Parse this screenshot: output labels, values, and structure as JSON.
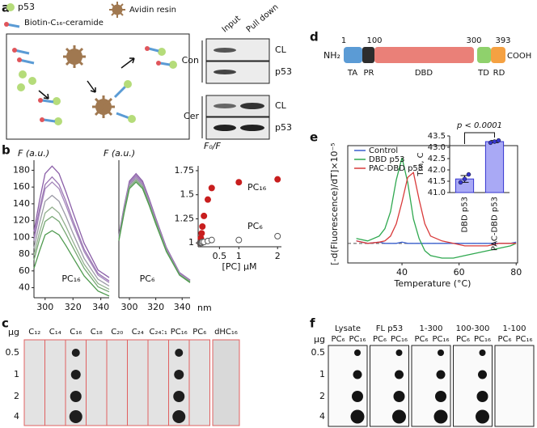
{
  "panel_labels": [
    "a",
    "b",
    "c",
    "d",
    "e",
    "f"
  ],
  "panel_a": {
    "legend": [
      "p53",
      "Biotin-C₁₆-ceramide",
      "Avidin resin"
    ],
    "blot": {
      "columns": [
        "Input",
        "Pull down"
      ],
      "groups": [
        {
          "name": "Con",
          "rows": [
            "CL",
            "p53"
          ]
        },
        {
          "name": "Cer",
          "rows": [
            "CL",
            "p53"
          ]
        }
      ]
    }
  },
  "panel_c": {
    "unit": "μg",
    "amounts": [
      0.5,
      1,
      2,
      4
    ],
    "lipids": [
      "C₁₂",
      "C₁₄",
      "C₁₆",
      "C₁₈",
      "C₂₀",
      "C₂₄",
      "C₂₄:₁",
      "PC₁₆",
      "PC₆",
      "dHC₁₆"
    ]
  },
  "panel_d": {
    "termini": [
      "NH₂",
      "COOH"
    ],
    "positions": [
      1,
      100,
      300,
      393
    ],
    "domains": [
      "TA",
      "PR",
      "DBD",
      "TD",
      "RD"
    ]
  },
  "panel_f": {
    "unit": "μg",
    "amounts": [
      0.5,
      1,
      2,
      4
    ],
    "proteins": [
      "Lysate",
      "FL p53",
      "1-300",
      "100-300",
      "1-100"
    ],
    "lipids": [
      "PC₆",
      "PC₁₆"
    ]
  },
  "chart_data": [
    {
      "type": "line",
      "ylabel": "F (a.u.)",
      "annotation": "PC₁₆",
      "x": [
        292,
        296,
        300,
        305,
        310,
        315,
        320,
        328,
        338,
        346
      ],
      "series": [
        {
          "color": "#8b5fa8",
          "values": [
            107,
            144,
            176,
            185,
            176,
            154,
            130,
            93,
            61,
            52
          ]
        },
        {
          "color": "#9a74b3",
          "values": [
            100,
            134,
            163,
            172,
            163,
            143,
            120,
            86,
            57,
            48
          ]
        },
        {
          "color": "#a487bb",
          "values": [
            96,
            129,
            158,
            166,
            158,
            138,
            116,
            83,
            55,
            46
          ]
        },
        {
          "color": "#9b9aa6",
          "values": [
            87,
            117,
            143,
            150,
            143,
            125,
            105,
            75,
            50,
            42
          ]
        },
        {
          "color": "#93b08f",
          "values": [
            79,
            106,
            129,
            136,
            129,
            113,
            95,
            68,
            45,
            38
          ]
        },
        {
          "color": "#77a874",
          "values": [
            73,
            98,
            119,
            125,
            119,
            104,
            88,
            63,
            41,
            35
          ]
        },
        {
          "color": "#4f9a4f",
          "values": [
            63,
            84,
            103,
            108,
            103,
            90,
            76,
            54,
            36,
            30
          ]
        }
      ],
      "xlim": [
        292,
        346
      ],
      "xticks": [
        300,
        320,
        340
      ],
      "ylim": [
        28,
        192
      ],
      "yticks": [
        40,
        60,
        80,
        100,
        120,
        140,
        160,
        180
      ]
    },
    {
      "type": "line",
      "ylabel": "F (a.u.)",
      "annotation": "PC₆",
      "xlabel": "nm",
      "x": [
        292,
        296,
        300,
        305,
        310,
        315,
        320,
        328,
        338,
        346
      ],
      "series": [
        {
          "color": "#8b5fa8",
          "values": [
            102,
            137,
            167,
            176,
            167,
            146,
            123,
            88,
            58,
            49
          ]
        },
        {
          "color": "#9a74b3",
          "values": [
            101,
            136,
            165,
            174,
            165,
            144,
            122,
            87,
            57,
            49
          ]
        },
        {
          "color": "#a487bb",
          "values": [
            100,
            134,
            163,
            172,
            163,
            143,
            120,
            86,
            57,
            48
          ]
        },
        {
          "color": "#9b9aa6",
          "values": [
            99,
            133,
            162,
            170,
            162,
            141,
            119,
            85,
            56,
            48
          ]
        },
        {
          "color": "#77a874",
          "values": [
            97,
            131,
            160,
            168,
            160,
            139,
            118,
            84,
            55,
            47
          ]
        },
        {
          "color": "#4f9a4f",
          "values": [
            96,
            129,
            158,
            166,
            158,
            138,
            116,
            83,
            55,
            46
          ]
        }
      ],
      "xlim": [
        292,
        346
      ],
      "xticks": [
        300,
        320,
        340
      ],
      "ylim": [
        28,
        192
      ]
    },
    {
      "type": "scatter",
      "ylabel": "F₀/F",
      "xlabel": "[PC] μM",
      "x": [
        0,
        0.02,
        0.04,
        0.06,
        0.1,
        0.2,
        0.3,
        1,
        2
      ],
      "series": [
        {
          "name": "PC₁₆",
          "color": "#c81e1e",
          "filled": true,
          "values": [
            1.0,
            1.05,
            1.1,
            1.17,
            1.28,
            1.45,
            1.57,
            1.63,
            1.66
          ]
        },
        {
          "name": "PC₆",
          "color": "#555555",
          "filled": false,
          "values": [
            1.0,
            1.0,
            1.0,
            1.01,
            1.01,
            1.02,
            1.03,
            1.03,
            1.07
          ]
        }
      ],
      "xlim": [
        -0.05,
        2.1
      ],
      "xticks": [
        0.5,
        1,
        2
      ],
      "ylim": [
        0.96,
        1.8
      ],
      "yticks": [
        1,
        1.25,
        1.5,
        1.75
      ]
    },
    {
      "type": "line",
      "ylabel": "[-d(Fluorescence)/dT]×10⁻⁵",
      "xlabel": "Temperature (°C)",
      "x": [
        24,
        28,
        32,
        34,
        36,
        38,
        40,
        42,
        44,
        46,
        48,
        50,
        54,
        58,
        62,
        66,
        70,
        74,
        78,
        80
      ],
      "series": [
        {
          "name": "Control",
          "color": "#3a5fcd",
          "values": [
            0.1,
            0,
            0.05,
            0,
            0,
            0,
            0.05,
            0,
            0,
            0,
            0,
            0,
            0,
            0,
            0,
            0,
            0,
            0,
            0,
            0.05
          ]
        },
        {
          "name": "DBD p53",
          "color": "#2fa84f",
          "values": [
            0.2,
            0.1,
            0.3,
            0.6,
            1.3,
            2.6,
            3.5,
            2.5,
            1.0,
            0.2,
            -0.3,
            -0.5,
            -0.6,
            -0.6,
            -0.5,
            -0.4,
            -0.3,
            -0.2,
            -0.1,
            0
          ]
        },
        {
          "name": "PAC-DBD p53",
          "color": "#d93a3a",
          "values": [
            0.1,
            0,
            0.05,
            0.1,
            0.3,
            0.8,
            1.7,
            2.7,
            2.9,
            1.8,
            0.8,
            0.3,
            0.1,
            0,
            -0.1,
            -0.1,
            -0.1,
            0,
            0,
            0
          ]
        }
      ],
      "xlim": [
        21,
        80.5
      ],
      "xticks": [
        40,
        60,
        80
      ],
      "ylim": [
        -0.8,
        4
      ],
      "legend": "upper left"
    },
    {
      "type": "bar",
      "ylabel": "Tm, C",
      "annotation": "p < 0.0001",
      "categories": [
        "DBD p53",
        "PAC-DBD p53"
      ],
      "values": [
        41.6,
        43.25
      ],
      "errors": [
        0.15,
        0.05
      ],
      "points": [
        [
          41.45,
          41.6,
          41.8
        ],
        [
          43.2,
          43.25,
          43.3
        ]
      ],
      "color": "#a9a9f5",
      "edge_color": "#3535d0",
      "ylim": [
        41,
        43.5
      ],
      "yticks": [
        {
          "value": 41,
          "label": "41.0"
        },
        {
          "value": 41.5,
          "label": "41.5"
        },
        {
          "value": 42,
          "label": "42.0"
        },
        {
          "value": 42.5,
          "label": "42.5"
        },
        {
          "value": 43,
          "label": "43.0"
        },
        {
          "value": 43.5,
          "label": "43.5"
        }
      ]
    }
  ]
}
